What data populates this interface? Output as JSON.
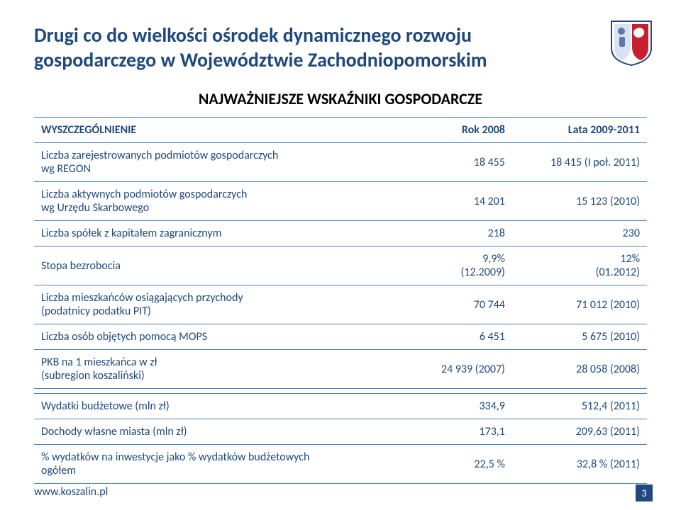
{
  "title": "Drugi co do wielkości ośrodek dynamicznego rozwoju gospodarczego w Województwie Zachodniopomorskim",
  "subtitle": "NAJWAŻNIEJSZE WSKAŹNIKI GOSPODARCZE",
  "colors": {
    "primary": "#1f497d",
    "border": "#4f81bd",
    "background": "#ffffff"
  },
  "table": {
    "header": {
      "c0": "WYSZCZEGÓLNIENIE",
      "c1": "Rok 2008",
      "c2": "Lata 2009-2011"
    },
    "rows": [
      {
        "c0": "Liczba zarejestrowanych podmiotów gospodarczych\nwg REGON",
        "c1": "18 455",
        "c2": "18 415 (I poł. 2011)"
      },
      {
        "c0": "Liczba aktywnych podmiotów gospodarczych\nwg Urzędu Skarbowego",
        "c1": "14 201",
        "c2": "15 123 (2010)"
      },
      {
        "c0": "Liczba spółek z kapitałem zagranicznym",
        "c1": "218",
        "c2": "230"
      },
      {
        "c0": "Stopa bezrobocia",
        "c1": "9,9%\n(12.2009)",
        "c2": "12%\n(01.2012)"
      },
      {
        "c0": "Liczba mieszkańców osiągających przychody\n(podatnicy podatku PIT)",
        "c1": "70 744",
        "c2": "71 012 (2010)"
      },
      {
        "c0": "Liczba osób objętych pomocą MOPS",
        "c1": "6 451",
        "c2": "5 675 (2010)"
      },
      {
        "c0": "PKB na 1 mieszkańca w zł\n(subregion koszaliński)",
        "c1": "24 939 (2007)",
        "c2": "28 058 (2008)"
      }
    ],
    "rows2": [
      {
        "c0": "Wydatki budżetowe (mln zł)",
        "c1": "334,9",
        "c2": "512,4 (2011)"
      },
      {
        "c0": "Dochody własne miasta (mln zł)",
        "c1": "173,1",
        "c2": "209,63 (2011)"
      },
      {
        "c0": "% wydatków na inwestycje jako % wydatków budżetowych\nogółem",
        "c1": "22,5 %",
        "c2": "32,8 % (2011)"
      }
    ]
  },
  "footer": "www.koszalin.pl",
  "page": "3"
}
